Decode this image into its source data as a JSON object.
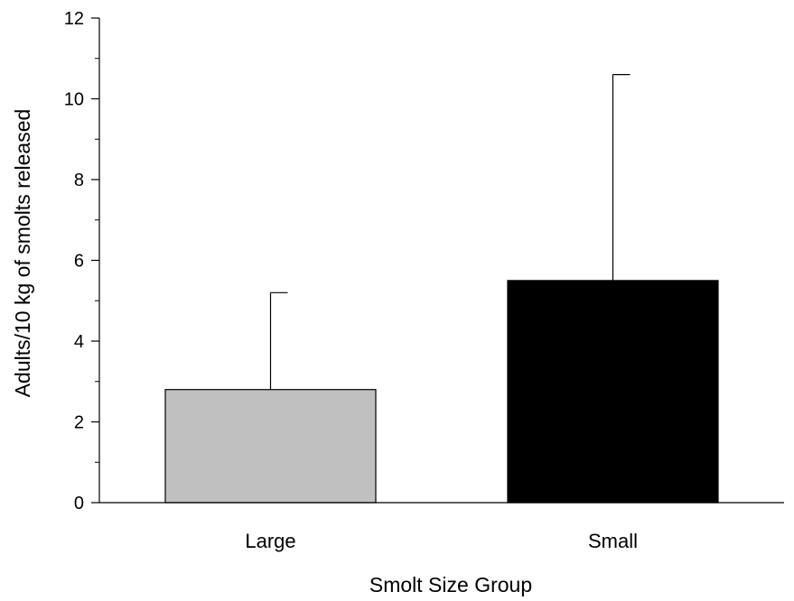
{
  "chart_data": {
    "type": "bar",
    "title": "",
    "xlabel": "Smolt Size Group",
    "ylabel": "Adults/10 kg of smolts released",
    "categories": [
      "Large",
      "Small"
    ],
    "values": [
      2.8,
      5.5
    ],
    "error_upper": [
      5.2,
      10.6
    ],
    "bar_colors": [
      "#c0c0c0",
      "#000000"
    ],
    "ylim": [
      0,
      12
    ],
    "yticks": [
      0,
      2,
      4,
      6,
      8,
      10,
      12
    ],
    "grid": false,
    "legend": "none"
  }
}
